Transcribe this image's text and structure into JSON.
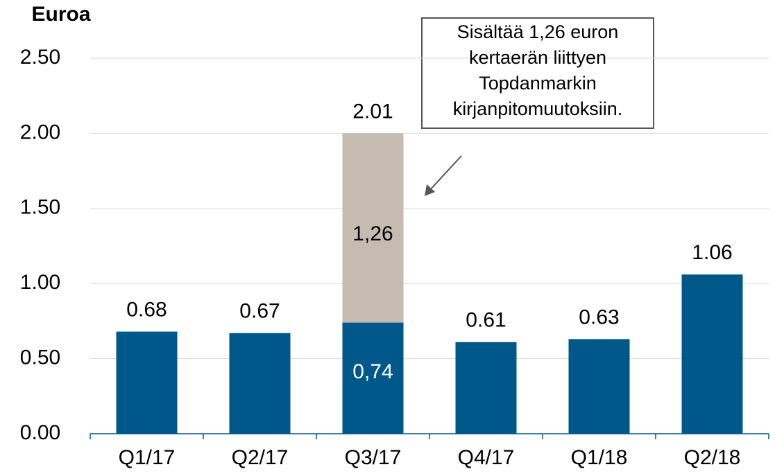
{
  "chart_data": {
    "type": "bar",
    "stacked": true,
    "y_label": "Euroa",
    "categories": [
      "Q1/17",
      "Q2/17",
      "Q3/17",
      "Q4/17",
      "Q1/18",
      "Q2/18"
    ],
    "series": [
      {
        "color": "#00578a",
        "values": [
          0.68,
          0.67,
          0.74,
          0.61,
          0.63,
          1.06
        ],
        "value_labels": [
          null,
          null,
          "0,74",
          null,
          null,
          null
        ]
      },
      {
        "color": "#c6bbb0",
        "values": [
          null,
          null,
          1.26,
          null,
          null,
          null
        ],
        "value_labels": [
          null,
          null,
          "1,26",
          null,
          null,
          null
        ]
      }
    ],
    "total_labels": [
      "0.68",
      "0.67",
      "2.01",
      "0.61",
      "0.63",
      "1.06"
    ],
    "annotation": [
      "Sisältää 1,26 euron",
      "kertaerän liittyen",
      "Topdanmarkin",
      "kirjanpitomuutoksiin."
    ],
    "ylim": [
      0,
      2.5
    ],
    "yticks": [
      {
        "value": 0,
        "label": "0.00"
      },
      {
        "value": 0.5,
        "label": "0.50"
      },
      {
        "value": 1,
        "label": "1.00"
      },
      {
        "value": 1.5,
        "label": "1.50"
      },
      {
        "value": 2,
        "label": "2.00"
      },
      {
        "value": 2.5,
        "label": "2.50"
      }
    ],
    "grid": true
  }
}
